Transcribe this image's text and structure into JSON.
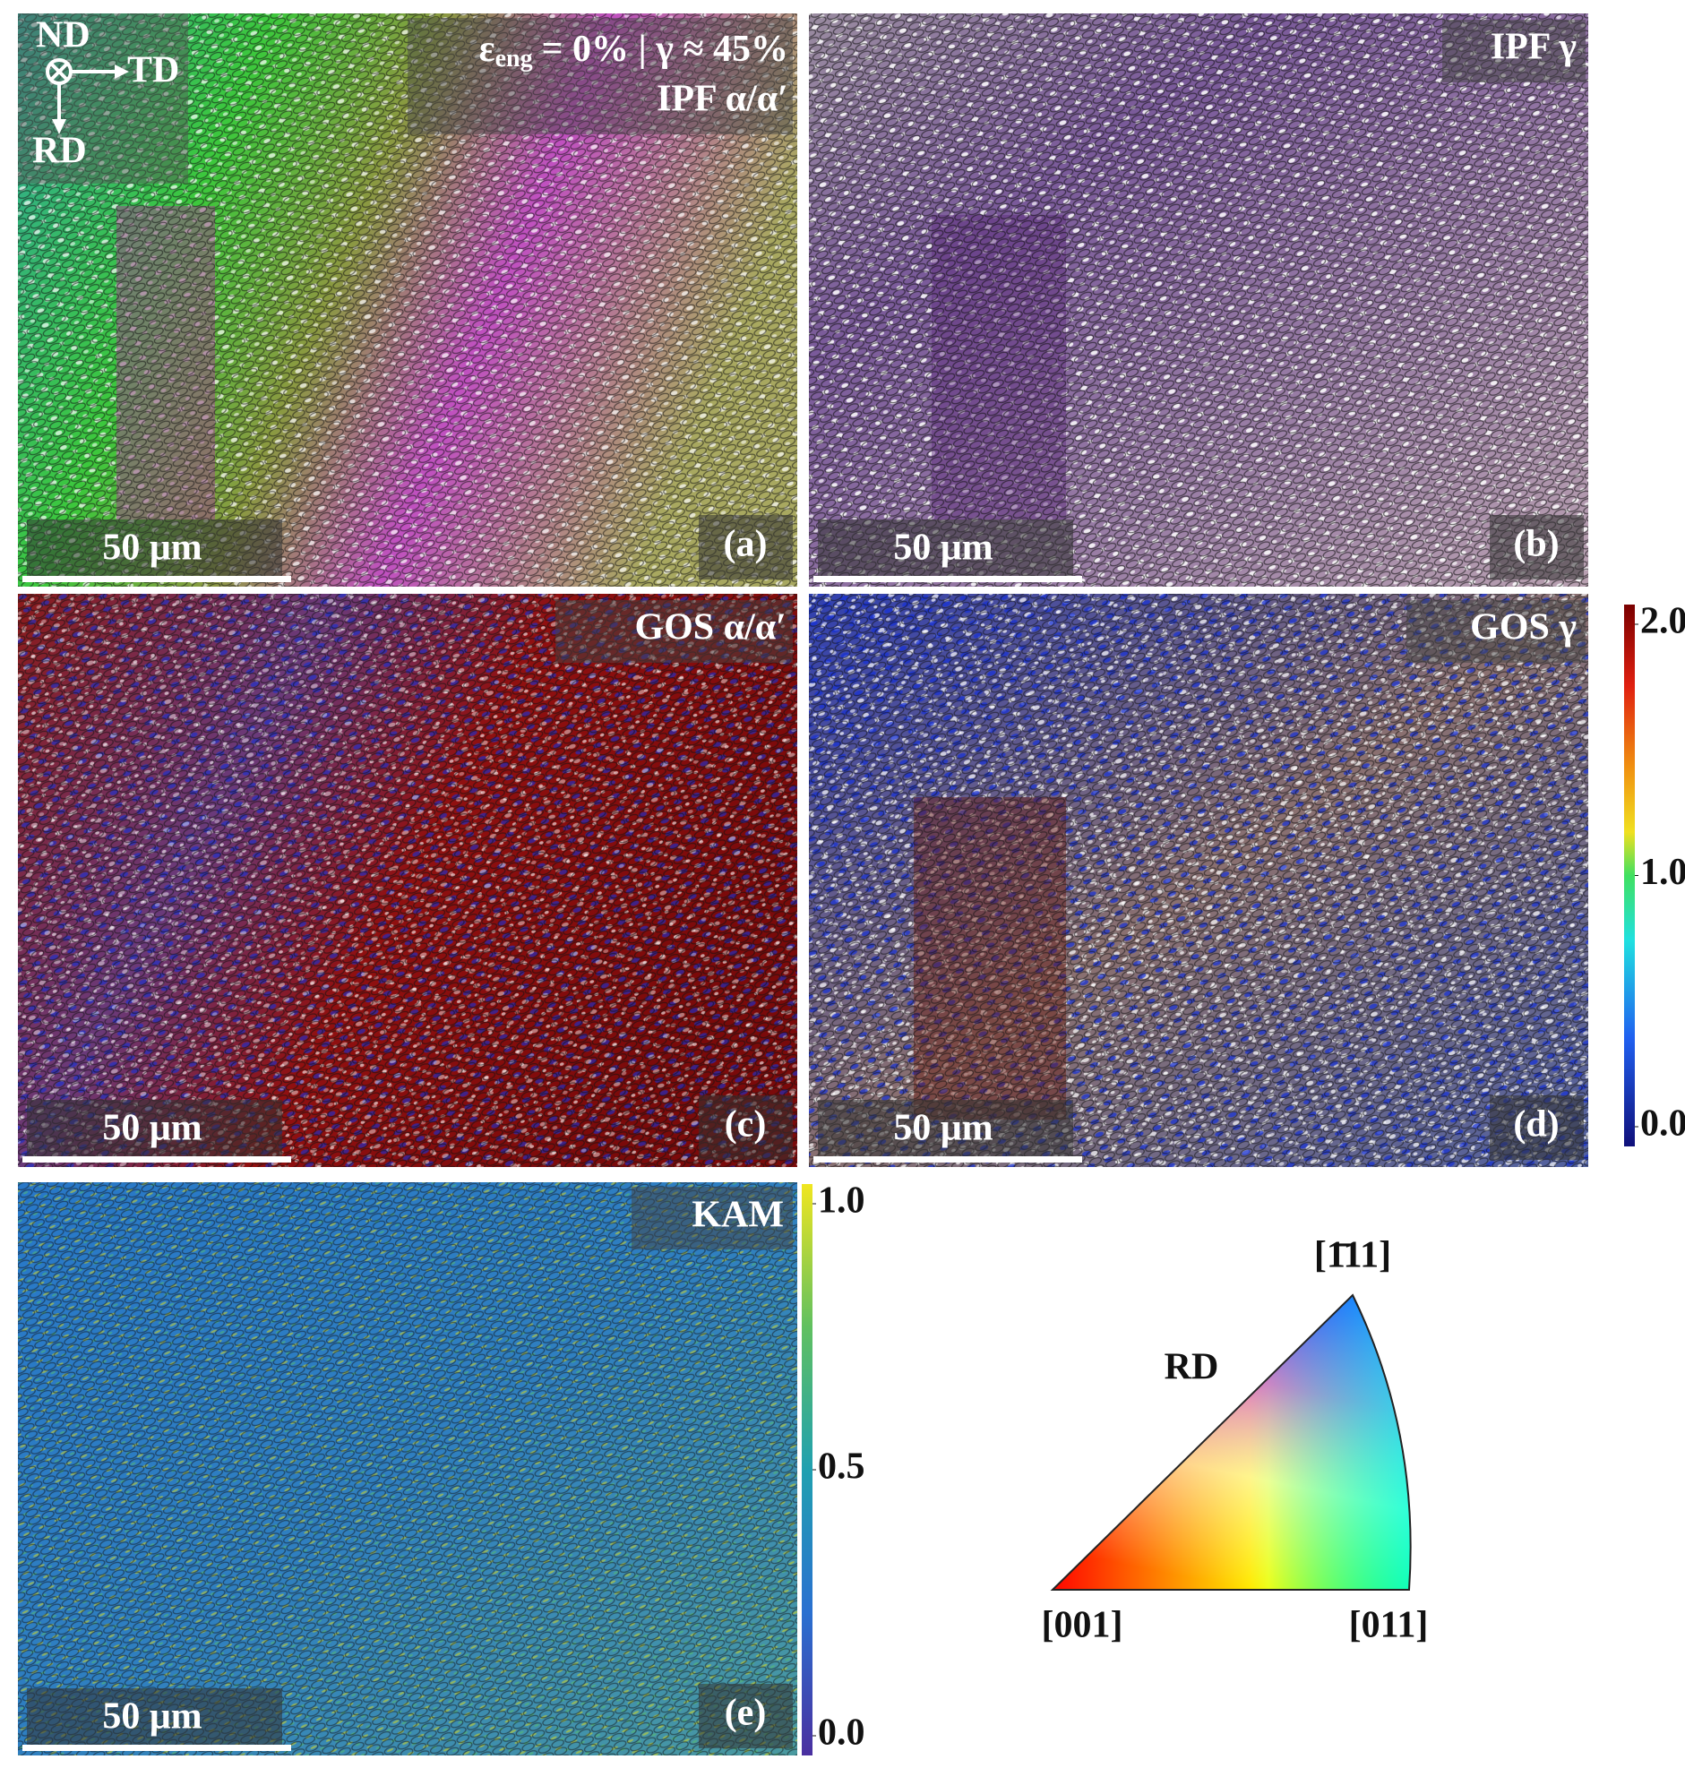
{
  "panels": [
    {
      "label": "(a)",
      "title": "IPF α/α′",
      "strain": {
        "symbol": "ε",
        "subscript": "eng",
        "text": "= 0% | γ ≈ 45%"
      },
      "scale_bar": "50 μm",
      "axes": {
        "normal": "ND",
        "horizontal": "TD",
        "vertical": "RD"
      }
    },
    {
      "label": "(b)",
      "title": "IPF γ",
      "scale_bar": "50 μm"
    },
    {
      "label": "(c)",
      "title": "GOS α/α′",
      "scale_bar": "50 μm"
    },
    {
      "label": "(d)",
      "title": "GOS γ",
      "scale_bar": "50 μm"
    },
    {
      "label": "(e)",
      "title": "KAM",
      "scale_bar": "50 μm"
    }
  ],
  "colorbars": [
    {
      "range": [
        0,
        2
      ],
      "ticks": [
        {
          "value": 0,
          "label": "0.0"
        },
        {
          "value": 1,
          "label": "1.0"
        },
        {
          "value": 2,
          "label": "2.0"
        }
      ]
    },
    {
      "range": [
        0,
        1
      ],
      "ticks": [
        {
          "value": 0,
          "label": "0.0"
        },
        {
          "value": 0.5,
          "label": "0.5"
        },
        {
          "value": 1,
          "label": "1.0"
        }
      ]
    }
  ],
  "ipf_key": {
    "direction": "RD",
    "corners": [
      "[001]",
      "[011]",
      "[1̄11]"
    ]
  }
}
